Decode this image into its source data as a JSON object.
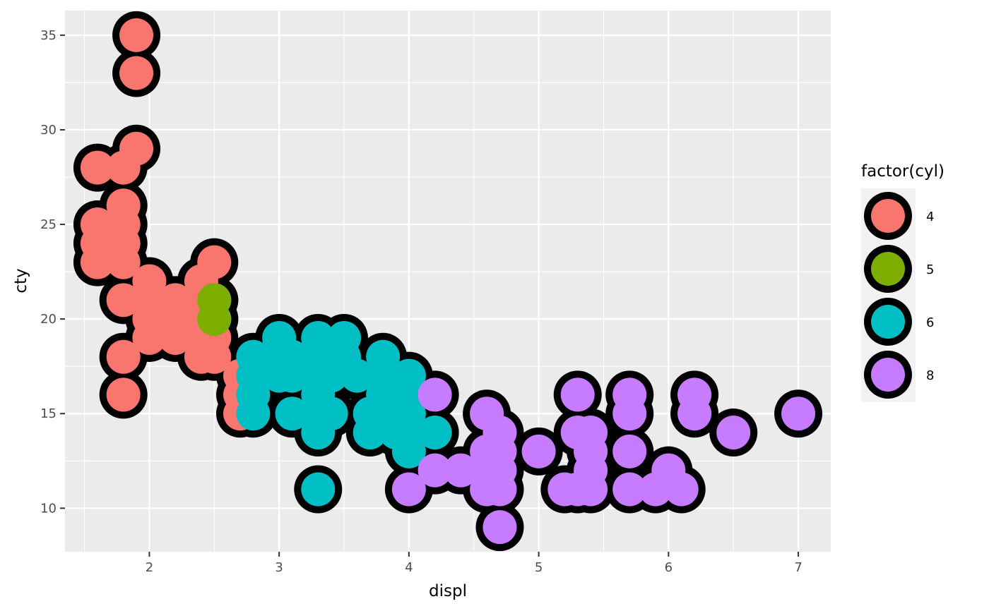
{
  "chart_data": {
    "type": "scatter",
    "xlabel": "displ",
    "ylabel": "cty",
    "xlim": [
      1.35,
      7.25
    ],
    "ylim": [
      7.7,
      36.3
    ],
    "x_ticks": [
      2,
      3,
      4,
      5,
      6,
      7
    ],
    "y_ticks": [
      10,
      15,
      20,
      25,
      30,
      35
    ],
    "x_tick_labels": [
      "2",
      "3",
      "4",
      "5",
      "6",
      "7"
    ],
    "y_tick_labels": [
      "10",
      "15",
      "20",
      "25",
      "30",
      "35"
    ],
    "grid": true,
    "legend": {
      "title": "factor(cyl)",
      "position": "right",
      "entries": [
        {
          "label": "4",
          "color": "#F8766D"
        },
        {
          "label": "5",
          "color": "#7CAE00"
        },
        {
          "label": "6",
          "color": "#00BFC4"
        },
        {
          "label": "8",
          "color": "#C77CFF"
        }
      ]
    },
    "point_style": {
      "stroke": "#000000",
      "size": "large"
    },
    "series": [
      {
        "name": "4",
        "color": "#F8766D",
        "points": [
          [
            1.9,
            35
          ],
          [
            1.9,
            33
          ],
          [
            1.9,
            29
          ],
          [
            1.8,
            28
          ],
          [
            1.6,
            28
          ],
          [
            1.8,
            26
          ],
          [
            1.6,
            25
          ],
          [
            1.8,
            25
          ],
          [
            1.6,
            24
          ],
          [
            1.8,
            24
          ],
          [
            1.6,
            23
          ],
          [
            1.8,
            23
          ],
          [
            1.8,
            21
          ],
          [
            2.0,
            22
          ],
          [
            2.0,
            21
          ],
          [
            2.0,
            20
          ],
          [
            2.0,
            19
          ],
          [
            2.2,
            21
          ],
          [
            2.2,
            20
          ],
          [
            2.2,
            19
          ],
          [
            2.4,
            22
          ],
          [
            2.5,
            23
          ],
          [
            2.4,
            21
          ],
          [
            2.4,
            20
          ],
          [
            2.4,
            19
          ],
          [
            2.4,
            18
          ],
          [
            2.5,
            21
          ],
          [
            2.5,
            20
          ],
          [
            2.5,
            19
          ],
          [
            2.5,
            18
          ],
          [
            1.8,
            18
          ],
          [
            1.8,
            16
          ],
          [
            2.7,
            17
          ],
          [
            2.7,
            16
          ],
          [
            2.7,
            15
          ]
        ]
      },
      {
        "name": "5",
        "color": "#7CAE00",
        "points": [
          [
            2.5,
            21
          ],
          [
            2.5,
            20
          ]
        ]
      },
      {
        "name": "6",
        "color": "#00BFC4",
        "points": [
          [
            2.8,
            18
          ],
          [
            2.8,
            17
          ],
          [
            2.8,
            16
          ],
          [
            2.8,
            15
          ],
          [
            3.0,
            19
          ],
          [
            3.0,
            18
          ],
          [
            3.0,
            17
          ],
          [
            3.1,
            18
          ],
          [
            3.1,
            17
          ],
          [
            3.1,
            15
          ],
          [
            3.3,
            19
          ],
          [
            3.3,
            18
          ],
          [
            3.3,
            17
          ],
          [
            3.3,
            16
          ],
          [
            3.3,
            15
          ],
          [
            3.3,
            14
          ],
          [
            3.4,
            15
          ],
          [
            3.4,
            17
          ],
          [
            3.5,
            19
          ],
          [
            3.5,
            18
          ],
          [
            3.6,
            17
          ],
          [
            3.7,
            15
          ],
          [
            3.7,
            14
          ],
          [
            3.8,
            18
          ],
          [
            3.8,
            17
          ],
          [
            3.8,
            16
          ],
          [
            3.8,
            15
          ],
          [
            3.9,
            16
          ],
          [
            3.9,
            15
          ],
          [
            3.9,
            14
          ],
          [
            4.0,
            17
          ],
          [
            4.0,
            16
          ],
          [
            4.0,
            15
          ],
          [
            4.0,
            14
          ],
          [
            4.0,
            13
          ],
          [
            4.2,
            14
          ],
          [
            3.3,
            11
          ]
        ]
      },
      {
        "name": "8",
        "color": "#C77CFF",
        "points": [
          [
            4.2,
            16
          ],
          [
            4.2,
            12
          ],
          [
            4.0,
            11
          ],
          [
            4.4,
            12
          ],
          [
            4.6,
            15
          ],
          [
            4.6,
            13
          ],
          [
            4.6,
            12
          ],
          [
            4.6,
            11
          ],
          [
            4.7,
            14
          ],
          [
            4.7,
            13
          ],
          [
            4.7,
            12
          ],
          [
            4.7,
            11
          ],
          [
            4.7,
            9
          ],
          [
            5.0,
            13
          ],
          [
            5.2,
            11
          ],
          [
            5.3,
            16
          ],
          [
            5.3,
            14
          ],
          [
            5.3,
            11
          ],
          [
            5.4,
            14
          ],
          [
            5.4,
            13
          ],
          [
            5.4,
            12
          ],
          [
            5.4,
            11
          ],
          [
            5.7,
            16
          ],
          [
            5.7,
            15
          ],
          [
            5.7,
            13
          ],
          [
            5.7,
            11
          ],
          [
            5.9,
            11
          ],
          [
            6.0,
            12
          ],
          [
            6.1,
            11
          ],
          [
            6.2,
            16
          ],
          [
            6.2,
            15
          ],
          [
            6.5,
            14
          ],
          [
            7.0,
            15
          ]
        ]
      }
    ]
  }
}
